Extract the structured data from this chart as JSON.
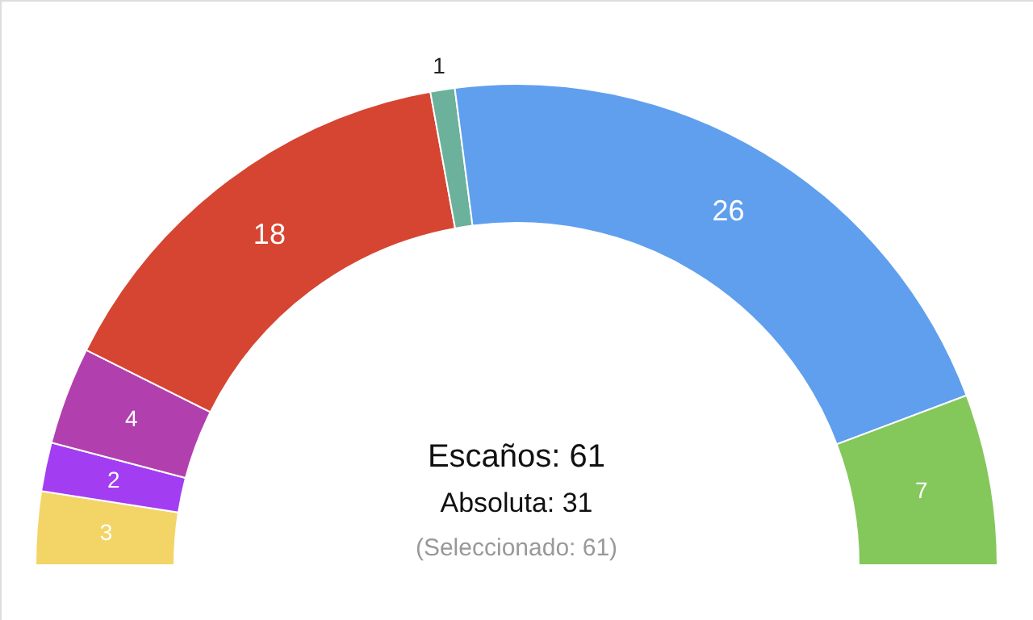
{
  "chart_data": {
    "type": "donut",
    "categories": [
      null,
      null,
      null,
      null,
      null,
      null,
      null
    ],
    "values": [
      3,
      2,
      4,
      18,
      1,
      26,
      7
    ],
    "colors": [
      "#f3d567",
      "#a33df2",
      "#b23fae",
      "#d64532",
      "#6cb19b",
      "#5f9fee",
      "#84c75b"
    ],
    "data_labels": true,
    "annotations": [
      "Escaños: 61",
      "Absoluta: 31",
      "(Seleccionado: 61)"
    ]
  }
}
